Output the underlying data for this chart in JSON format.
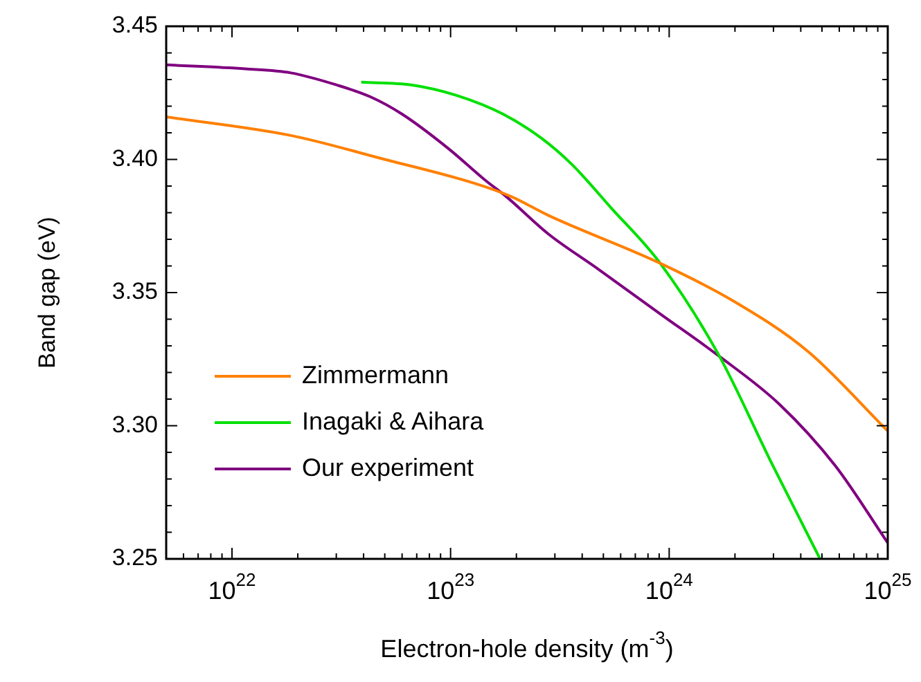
{
  "chart_data": {
    "type": "line",
    "xlabel": "Electron-hole density (m$^{-3}$)",
    "ylabel": "Band gap (eV)",
    "log": "x",
    "marker": "none",
    "line_style": "solid",
    "legend": "bottom left",
    "xlim": [
      5e+21,
      1e+25
    ],
    "ylim": [
      3.25,
      3.45
    ],
    "xticks": [
      {
        "value": 6e+21,
        "label": null
      },
      {
        "value": 7e+21,
        "label": null
      },
      {
        "value": 8e+21,
        "label": null
      },
      {
        "value": 9e+21,
        "label": null
      },
      {
        "value": 1e+22,
        "label": "10$^{22}$"
      },
      {
        "value": 2e+22,
        "label": null
      },
      {
        "value": 3e+22,
        "label": null
      },
      {
        "value": 4e+22,
        "label": null
      },
      {
        "value": 5e+22,
        "label": null
      },
      {
        "value": 6e+22,
        "label": null
      },
      {
        "value": 7e+22,
        "label": null
      },
      {
        "value": 8e+22,
        "label": null
      },
      {
        "value": 9e+22,
        "label": null
      },
      {
        "value": 1e+23,
        "label": "10$^{23}$"
      },
      {
        "value": 2e+23,
        "label": null
      },
      {
        "value": 3e+23,
        "label": null
      },
      {
        "value": 4e+23,
        "label": null
      },
      {
        "value": 5e+23,
        "label": null
      },
      {
        "value": 6e+23,
        "label": null
      },
      {
        "value": 7e+23,
        "label": null
      },
      {
        "value": 8e+23,
        "label": null
      },
      {
        "value": 9e+23,
        "label": null
      },
      {
        "value": 1e+24,
        "label": "10$^{24}$"
      },
      {
        "value": 2e+24,
        "label": null
      },
      {
        "value": 3e+24,
        "label": null
      },
      {
        "value": 4e+24,
        "label": null
      },
      {
        "value": 5e+24,
        "label": null
      },
      {
        "value": 6e+24,
        "label": null
      },
      {
        "value": 7e+24,
        "label": null
      },
      {
        "value": 8e+24,
        "label": null
      },
      {
        "value": 9e+24,
        "label": null
      },
      {
        "value": 1e+25,
        "label": "10$^{25}$"
      }
    ],
    "yticks": [
      {
        "value": 3.25,
        "label": "3.25"
      },
      {
        "value": 3.26,
        "label": null
      },
      {
        "value": 3.27,
        "label": null
      },
      {
        "value": 3.28,
        "label": null
      },
      {
        "value": 3.29,
        "label": null
      },
      {
        "value": 3.3,
        "label": "3.30"
      },
      {
        "value": 3.31,
        "label": null
      },
      {
        "value": 3.32,
        "label": null
      },
      {
        "value": 3.33,
        "label": null
      },
      {
        "value": 3.34,
        "label": null
      },
      {
        "value": 3.35,
        "label": "3.35"
      },
      {
        "value": 3.36,
        "label": null
      },
      {
        "value": 3.37,
        "label": null
      },
      {
        "value": 3.38,
        "label": null
      },
      {
        "value": 3.39,
        "label": null
      },
      {
        "value": 3.4,
        "label": "3.40"
      },
      {
        "value": 3.41,
        "label": null
      },
      {
        "value": 3.42,
        "label": null
      },
      {
        "value": 3.43,
        "label": null
      },
      {
        "value": 3.44,
        "label": null
      },
      {
        "value": 3.45,
        "label": "3.45"
      }
    ],
    "series": [
      {
        "name": "Zimmermann",
        "color": "#ff8000",
        "x": [
          5e+21,
          1.86e+22,
          5e+22,
          1.29e+23,
          1.9e+23,
          2.8e+23,
          9.1e+23,
          1.95e+24,
          4.3e+24,
          1e+25
        ],
        "values": [
          3.416,
          3.409,
          3.4,
          3.391,
          3.386,
          3.379,
          3.361,
          3.347,
          3.328,
          3.298
        ]
      },
      {
        "name": "Inagaki & Aihara",
        "color": "#00e000",
        "x": [
          3.9e+22,
          6.6e+22,
          1.07e+23,
          1.74e+23,
          2.6e+23,
          3.6e+23,
          5.4e+23,
          9.1e+23,
          1.7e+24,
          2.9e+24,
          4.9e+24
        ],
        "values": [
          3.429,
          3.428,
          3.424,
          3.417,
          3.408,
          3.398,
          3.382,
          3.361,
          3.326,
          3.287,
          3.25
        ]
      },
      {
        "name": "Our experiment",
        "color": "#800080",
        "x": [
          5e+21,
          1.15e+22,
          1.86e+22,
          3e+22,
          4.3e+22,
          6e+22,
          9.8e+22,
          1.45e+23,
          1.8e+23,
          2.8e+23,
          4.7e+23,
          9.1e+23,
          1.7e+24,
          3.2e+24,
          5.75e+24,
          1e+25
        ],
        "values": [
          3.4355,
          3.434,
          3.4325,
          3.428,
          3.4235,
          3.417,
          3.404,
          3.392,
          3.386,
          3.372,
          3.359,
          3.342,
          3.326,
          3.308,
          3.285,
          3.256
        ]
      }
    ]
  }
}
